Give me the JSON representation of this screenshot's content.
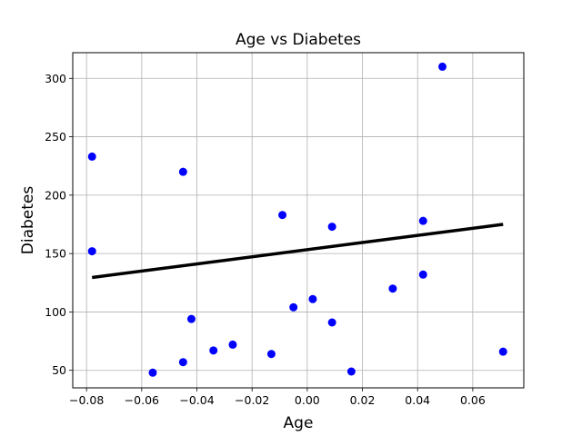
{
  "chart_data": {
    "type": "scatter",
    "title": "Age vs Diabetes",
    "xlabel": "Age",
    "ylabel": "Diabetes",
    "xlim": [
      -0.085,
      0.0785
    ],
    "ylim": [
      35,
      322
    ],
    "grid": true,
    "x_ticks": [
      -0.08,
      -0.06,
      -0.04,
      -0.02,
      0.0,
      0.02,
      0.04,
      0.06
    ],
    "x_tick_labels": [
      "−0.08",
      "−0.06",
      "−0.04",
      "−0.02",
      "0.00",
      "0.02",
      "0.04",
      "0.06"
    ],
    "y_ticks": [
      50,
      100,
      150,
      200,
      250,
      300
    ],
    "y_tick_labels": [
      "50",
      "100",
      "150",
      "200",
      "250",
      "300"
    ],
    "points": [
      {
        "x": -0.078,
        "y": 233
      },
      {
        "x": -0.078,
        "y": 152
      },
      {
        "x": -0.056,
        "y": 48
      },
      {
        "x": -0.045,
        "y": 220
      },
      {
        "x": -0.045,
        "y": 57
      },
      {
        "x": -0.042,
        "y": 94
      },
      {
        "x": -0.034,
        "y": 67
      },
      {
        "x": -0.027,
        "y": 72
      },
      {
        "x": -0.013,
        "y": 64
      },
      {
        "x": -0.009,
        "y": 183
      },
      {
        "x": -0.005,
        "y": 104
      },
      {
        "x": 0.002,
        "y": 111
      },
      {
        "x": 0.009,
        "y": 173
      },
      {
        "x": 0.009,
        "y": 91
      },
      {
        "x": 0.016,
        "y": 49
      },
      {
        "x": 0.031,
        "y": 120
      },
      {
        "x": 0.042,
        "y": 178
      },
      {
        "x": 0.042,
        "y": 132
      },
      {
        "x": 0.049,
        "y": 310
      },
      {
        "x": 0.071,
        "y": 66
      }
    ],
    "regression_line": {
      "x": [
        -0.078,
        0.071
      ],
      "y": [
        129.5,
        175
      ]
    },
    "colors": {
      "points": "#0000ff",
      "line": "#000000",
      "grid": "#b0b0b0"
    }
  }
}
